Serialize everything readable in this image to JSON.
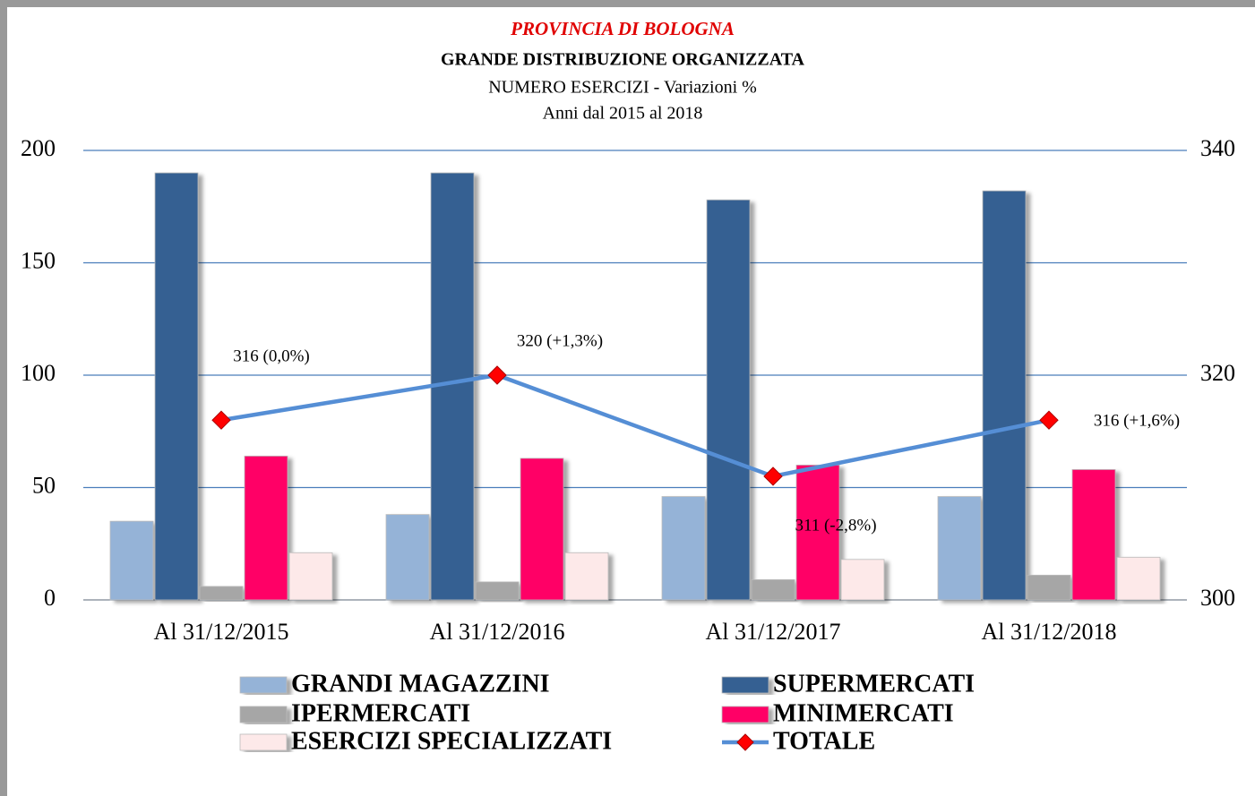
{
  "chart_data": {
    "type": "bar",
    "title": "PROVINCIA DI BOLOGNA",
    "subtitle": "GRANDE DISTRIBUZIONE ORGANIZZATA",
    "subtitle2": "NUMERO ESERCIZI - Variazioni %",
    "subtitle3": "Anni dal 2015 al 2018",
    "categories": [
      "Al 31/12/2015",
      "Al 31/12/2016",
      "Al 31/12/2017",
      "Al 31/12/2018"
    ],
    "series": [
      {
        "name": "GRANDI MAGAZZINI",
        "color": "#95b3d7",
        "values": [
          35,
          38,
          46,
          46
        ]
      },
      {
        "name": "SUPERMERCATI",
        "color": "#366092",
        "values": [
          190,
          190,
          178,
          182
        ]
      },
      {
        "name": "IPERMERCATI",
        "color": "#a6a6a6",
        "values": [
          6,
          8,
          9,
          11
        ]
      },
      {
        "name": "MINIMERCATI",
        "color": "#ff0066",
        "values": [
          64,
          63,
          60,
          58
        ]
      },
      {
        "name": "ESERCIZI SPECIALIZZATI",
        "color": "#fde9e9",
        "values": [
          21,
          21,
          18,
          19
        ]
      },
      {
        "name": "TOTALE",
        "type": "line",
        "axis": "y2",
        "color": "#558ed5",
        "marker_color": "#ff0000",
        "values": [
          316,
          320,
          311,
          316
        ],
        "value_labels": [
          "316 (0,0%)",
          "320 (+1,3%)",
          "311 (-2,8%)",
          "316 (+1,6%)"
        ]
      }
    ],
    "ylim": [
      0,
      200
    ],
    "yticks": [
      0,
      50,
      100,
      150,
      200
    ],
    "y2lim": [
      300,
      340
    ],
    "y2ticks": [
      300,
      320,
      340
    ],
    "grid": true
  }
}
